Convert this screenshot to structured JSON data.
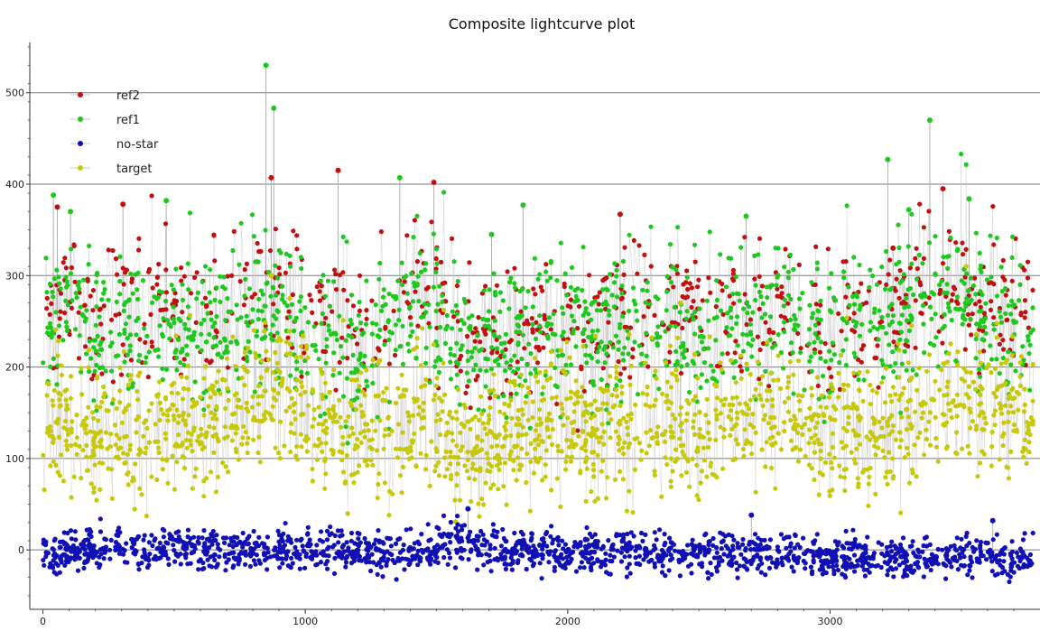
{
  "chart_data": {
    "type": "scatter",
    "title": "Composite lightcurve plot",
    "xlabel": "",
    "ylabel": "",
    "xlim": [
      -50,
      3800
    ],
    "ylim": [
      -65,
      555
    ],
    "x_ticks": [
      "0",
      "1000",
      "2000",
      "3000"
    ],
    "y_ticks": [
      "0",
      "100",
      "200",
      "300",
      "400",
      "500"
    ],
    "grid": "horizontal",
    "legend_position": "top-left",
    "series": [
      {
        "name": "ref2",
        "color": "#c01010",
        "x": [
          0,
          100,
          200,
          300,
          400,
          500,
          600,
          700,
          800,
          900,
          1000,
          1100,
          1200,
          1300,
          1400,
          1500,
          1600,
          1700,
          1800,
          1900,
          2000,
          2100,
          2200,
          2300,
          2400,
          2500,
          2600,
          2700,
          2800,
          2900,
          3000,
          3100,
          3200,
          3300,
          3400,
          3500,
          3600,
          3700,
          3775
        ],
        "values": [
          240,
          265,
          250,
          270,
          255,
          260,
          265,
          270,
          280,
          290,
          260,
          250,
          245,
          255,
          300,
          280,
          230,
          235,
          240,
          245,
          245,
          240,
          250,
          255,
          250,
          245,
          255,
          265,
          270,
          265,
          250,
          255,
          255,
          270,
          300,
          290,
          270,
          255,
          250
        ],
        "peaks": [
          [
            55,
            375
          ],
          [
            305,
            378
          ],
          [
            870,
            407
          ],
          [
            1125,
            415
          ],
          [
            1490,
            402
          ],
          [
            2200,
            367
          ],
          [
            3430,
            395
          ],
          [
            3240,
            330
          ]
        ]
      },
      {
        "name": "ref1",
        "color": "#1ec81e",
        "x": [
          0,
          100,
          200,
          300,
          400,
          500,
          600,
          700,
          800,
          900,
          1000,
          1100,
          1200,
          1300,
          1400,
          1500,
          1600,
          1700,
          1800,
          1900,
          2000,
          2100,
          2200,
          2300,
          2400,
          2500,
          2600,
          2700,
          2800,
          2900,
          3000,
          3100,
          3200,
          3300,
          3400,
          3500,
          3600,
          3700,
          3775
        ],
        "values": [
          245,
          270,
          225,
          240,
          230,
          240,
          245,
          240,
          260,
          270,
          240,
          225,
          210,
          230,
          270,
          260,
          220,
          225,
          225,
          230,
          240,
          230,
          240,
          250,
          245,
          235,
          240,
          250,
          255,
          255,
          240,
          250,
          245,
          260,
          275,
          270,
          255,
          250,
          245
        ],
        "peaks": [
          [
            40,
            388
          ],
          [
            105,
            370
          ],
          [
            470,
            382
          ],
          [
            850,
            530
          ],
          [
            880,
            483
          ],
          [
            1360,
            407
          ],
          [
            1710,
            345
          ],
          [
            1830,
            377
          ],
          [
            2680,
            365
          ],
          [
            3220,
            427
          ],
          [
            3380,
            470
          ],
          [
            3530,
            384
          ],
          [
            3300,
            372
          ]
        ]
      },
      {
        "name": "no-star",
        "color": "#1010b4",
        "x": [
          0,
          100,
          200,
          300,
          400,
          500,
          600,
          700,
          800,
          900,
          1000,
          1100,
          1200,
          1300,
          1400,
          1500,
          1600,
          1700,
          1800,
          1900,
          2000,
          2100,
          2200,
          2300,
          2400,
          2500,
          2600,
          2700,
          2800,
          2900,
          3000,
          3100,
          3200,
          3300,
          3400,
          3500,
          3600,
          3700,
          3775
        ],
        "values": [
          0,
          -2,
          2,
          0,
          -3,
          1,
          0,
          -2,
          3,
          0,
          -1,
          2,
          0,
          -2,
          1,
          5,
          8,
          2,
          0,
          -2,
          -5,
          -3,
          -1,
          0,
          -4,
          -2,
          -5,
          -8,
          -4,
          -2,
          -10,
          -8,
          -12,
          -10,
          -8,
          -5,
          -6,
          -10,
          -5
        ],
        "peaks": [
          [
            1620,
            45
          ],
          [
            2700,
            38
          ],
          [
            3620,
            32
          ]
        ]
      },
      {
        "name": "target",
        "color": "#c8c80a",
        "x": [
          0,
          100,
          200,
          300,
          400,
          500,
          600,
          700,
          800,
          900,
          1000,
          1100,
          1200,
          1300,
          1400,
          1500,
          1600,
          1700,
          1800,
          1900,
          2000,
          2100,
          2200,
          2300,
          2400,
          2500,
          2600,
          2700,
          2800,
          2900,
          3000,
          3100,
          3200,
          3300,
          3400,
          3500,
          3600,
          3700,
          3775
        ],
        "values": [
          140,
          135,
          120,
          125,
          130,
          135,
          140,
          145,
          165,
          180,
          150,
          135,
          125,
          130,
          145,
          140,
          110,
          115,
          125,
          130,
          130,
          125,
          135,
          140,
          135,
          125,
          130,
          140,
          145,
          145,
          125,
          130,
          125,
          140,
          160,
          165,
          155,
          150,
          145
        ],
        "peaks": [
          [
            870,
            300
          ],
          [
            2430,
            270
          ]
        ]
      }
    ]
  }
}
